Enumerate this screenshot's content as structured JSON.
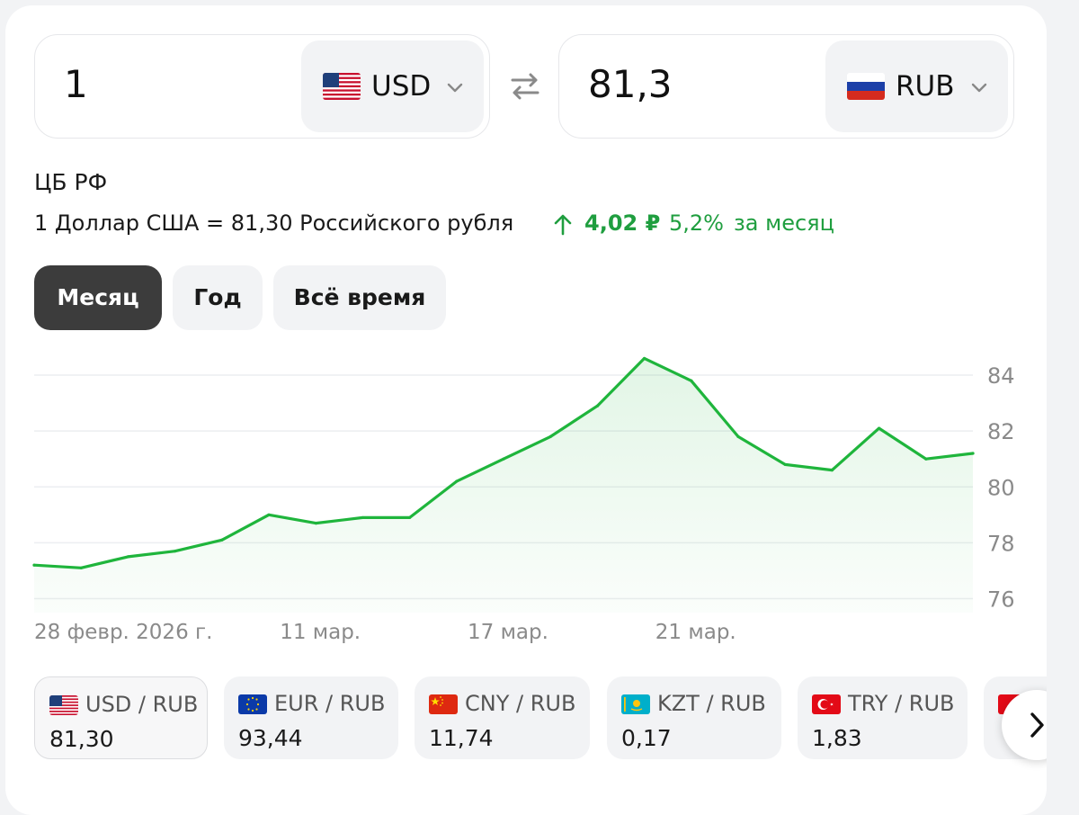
{
  "converter": {
    "from": {
      "amount": "1",
      "currency": "USD",
      "flag": "us-flag-icon"
    },
    "to": {
      "amount": "81,3",
      "currency": "RUB",
      "flag": "ru-flag-icon"
    },
    "swap_icon": "swap-arrows-icon"
  },
  "source": "ЦБ РФ",
  "rate": {
    "text": "1 Доллар США = 81,30 Российского рубля",
    "change_abs": "4,02 ₽",
    "change_pct": "5,2%",
    "change_period": "за месяц",
    "trend_icon": "arrow-up-icon"
  },
  "tabs": [
    {
      "label": "Месяц",
      "active": true
    },
    {
      "label": "Год",
      "active": false
    },
    {
      "label": "Всё время",
      "active": false
    }
  ],
  "chart_data": {
    "type": "area",
    "ylim": [
      75.5,
      85
    ],
    "yticks": [
      "84",
      "82",
      "80",
      "78",
      "76"
    ],
    "ytick_values": [
      84,
      82,
      80,
      78,
      76
    ],
    "xticks": [
      {
        "label": "28 февр. 2026 г.",
        "index": 0
      },
      {
        "label": "11 мар.",
        "index": 6
      },
      {
        "label": "17 мар.",
        "index": 10
      },
      {
        "label": "21 мар.",
        "index": 14
      }
    ],
    "values": [
      77.2,
      77.1,
      77.5,
      77.7,
      78.1,
      79.0,
      78.7,
      78.9,
      78.9,
      80.2,
      81.0,
      81.8,
      82.9,
      84.6,
      83.8,
      81.8,
      80.8,
      80.6,
      82.1,
      81.0,
      81.2
    ],
    "line_color": "#1fb53c",
    "grid": true
  },
  "pairs": [
    {
      "name": "USD / RUB",
      "value": "81,30",
      "flag": "us-flag-icon",
      "active": true
    },
    {
      "name": "EUR / RUB",
      "value": "93,44",
      "flag": "eu-flag-icon",
      "active": false
    },
    {
      "name": "CNY / RUB",
      "value": "11,74",
      "flag": "cn-flag-icon",
      "active": false
    },
    {
      "name": "KZT / RUB",
      "value": "0,17",
      "flag": "kz-flag-icon",
      "active": false
    },
    {
      "name": "TRY / RUB",
      "value": "1,83",
      "flag": "tr-flag-icon",
      "active": false
    }
  ],
  "next_icon": "chevron-right-icon",
  "colors": {
    "accent_green": "#1f9e3f",
    "active_tab": "#3c3c3c",
    "chip_bg": "#f2f3f5"
  }
}
